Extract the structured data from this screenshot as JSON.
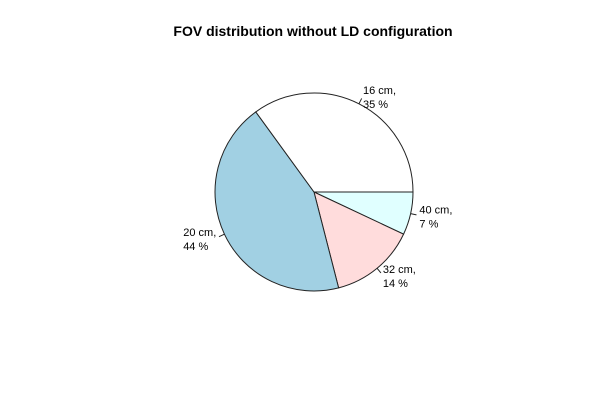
{
  "chart_data": {
    "type": "pie",
    "title": "FOV distribution without LD configuration",
    "slices": [
      {
        "label_line1": "40 cm,",
        "label_line2": "7 %",
        "percent": 7,
        "color": "#e0ffff"
      },
      {
        "label_line1": "32 cm,",
        "label_line2": "14 %",
        "percent": 14,
        "color": "#ffdcdc"
      },
      {
        "label_line1": "20 cm,",
        "label_line2": "44 %",
        "percent": 44,
        "color": "#a1d0e3"
      },
      {
        "label_line1": "16 cm,",
        "label_line2": "35 %",
        "percent": 35,
        "color": "#ffffff"
      }
    ],
    "start_angle_deg": 0,
    "direction": "clockwise",
    "legend": "none"
  }
}
